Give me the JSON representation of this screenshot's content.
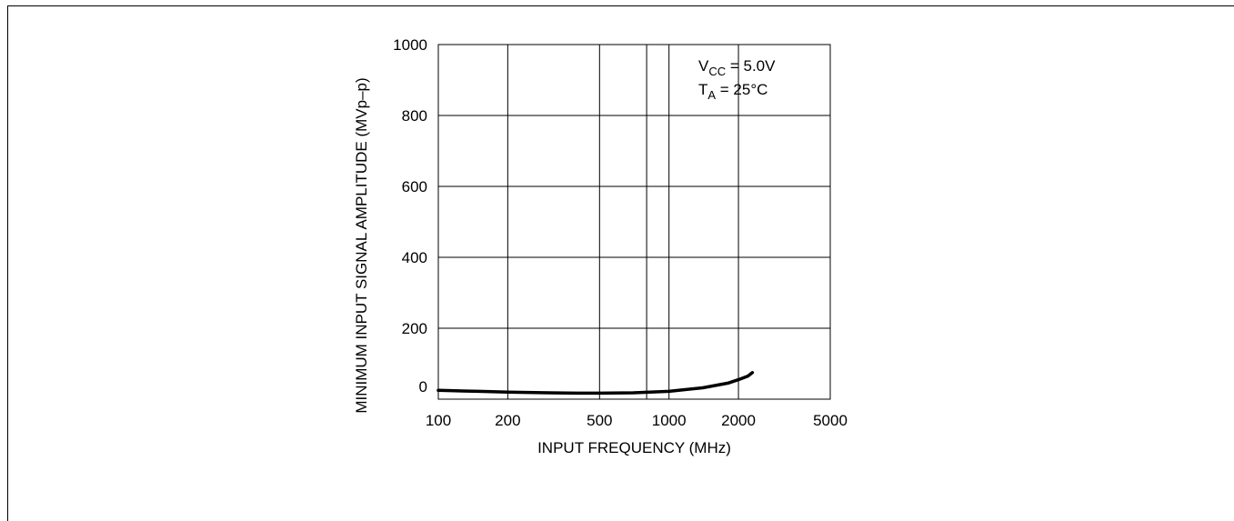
{
  "chart_data": {
    "type": "line",
    "xlabel": "INPUT FREQUENCY (MHz)",
    "ylabel": "MINIMUM INPUT SIGNAL AMPLITUDE (MVp–p)",
    "x_scale": "log",
    "xlim": [
      100,
      5000
    ],
    "ylim": [
      0,
      1000
    ],
    "x_ticks": [
      100,
      200,
      500,
      1000,
      2000,
      5000
    ],
    "x_tick_labels": [
      "100",
      "200",
      "500",
      "1000",
      "2000",
      "5000"
    ],
    "x_minor_gridlines": [
      800
    ],
    "y_ticks": [
      0,
      200,
      400,
      600,
      800,
      1000
    ],
    "y_tick_labels": [
      "0",
      "200",
      "400",
      "600",
      "800",
      "1000"
    ],
    "grid": true,
    "annotation": {
      "line1": {
        "base": "V",
        "sub": "CC",
        "rest": " = 5.0V"
      },
      "line2": {
        "base": "T",
        "sub": "A",
        "rest": " = 25°C"
      }
    },
    "series": [
      {
        "color": "#000000",
        "x": [
          100,
          150,
          200,
          300,
          400,
          500,
          700,
          1000,
          1400,
          1800,
          2000,
          2200,
          2300
        ],
        "y": [
          25,
          22,
          20,
          18,
          17,
          17,
          18,
          22,
          32,
          45,
          55,
          65,
          75
        ]
      }
    ]
  }
}
